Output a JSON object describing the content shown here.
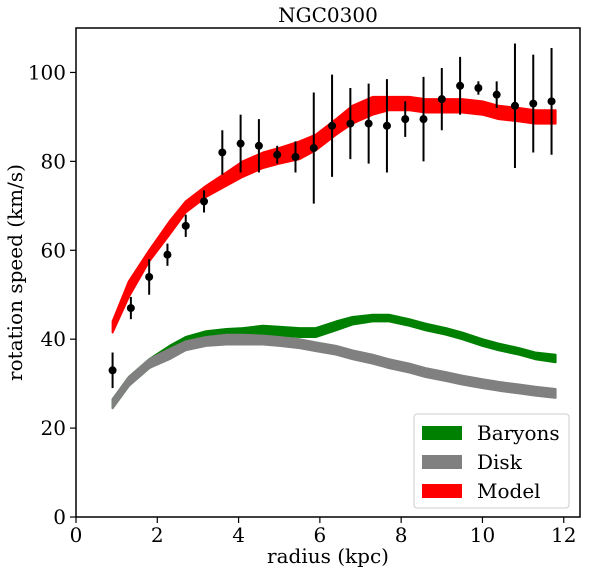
{
  "chart_data": {
    "type": "line",
    "title": "NGC0300",
    "xlabel": "radius (kpc)",
    "ylabel": "rotation speed (km/s)",
    "xlim": [
      0,
      12.4
    ],
    "ylim": [
      0,
      110
    ],
    "xticks": [
      0,
      2,
      4,
      6,
      8,
      10,
      12
    ],
    "yticks": [
      0,
      20,
      40,
      60,
      80,
      100
    ],
    "grid": false,
    "legend_position": "lower-right",
    "bands": [
      {
        "name": "Baryons",
        "color": "#008000",
        "x": [
          0.9,
          1.3,
          1.8,
          2.3,
          2.7,
          3.2,
          3.7,
          4.1,
          4.6,
          5.0,
          5.5,
          5.9,
          6.4,
          6.8,
          7.3,
          7.7,
          8.2,
          8.6,
          9.1,
          9.5,
          10.0,
          10.4,
          10.9,
          11.3,
          11.8
        ],
        "upper": [
          26.5,
          31.5,
          35.5,
          38.5,
          40.5,
          41.8,
          42.3,
          42.5,
          43.0,
          42.8,
          42.5,
          42.5,
          44.0,
          45.0,
          45.5,
          45.5,
          44.5,
          43.5,
          42.5,
          41.5,
          40.0,
          39.0,
          38.0,
          37.0,
          36.5
        ],
        "lower": [
          24.5,
          29.5,
          33.5,
          36.3,
          38.2,
          39.5,
          40.2,
          40.5,
          40.8,
          40.8,
          40.5,
          40.5,
          42.0,
          43.3,
          44.0,
          44.0,
          43.0,
          42.0,
          41.0,
          40.0,
          38.5,
          37.5,
          36.5,
          35.5,
          34.8
        ]
      },
      {
        "name": "Disk",
        "color": "#808080",
        "x": [
          0.9,
          1.3,
          1.8,
          2.3,
          2.7,
          3.2,
          3.7,
          4.1,
          4.6,
          5.0,
          5.5,
          5.9,
          6.4,
          6.8,
          7.3,
          7.7,
          8.2,
          8.6,
          9.1,
          9.5,
          10.0,
          10.4,
          10.9,
          11.3,
          11.8
        ],
        "upper": [
          26.5,
          31.5,
          35.5,
          37.8,
          39.5,
          40.5,
          41.0,
          41.0,
          40.8,
          40.5,
          40.0,
          39.3,
          38.5,
          37.5,
          36.5,
          35.5,
          34.5,
          33.5,
          32.6,
          31.8,
          31.0,
          30.4,
          29.8,
          29.3,
          28.8
        ],
        "lower": [
          24.5,
          29.5,
          33.5,
          35.5,
          37.5,
          38.5,
          38.8,
          38.8,
          38.8,
          38.5,
          38.0,
          37.3,
          36.5,
          35.5,
          34.5,
          33.5,
          32.5,
          31.5,
          30.6,
          29.8,
          29.0,
          28.4,
          27.8,
          27.3,
          26.8
        ]
      },
      {
        "name": "Model",
        "color": "#ff0000",
        "x": [
          0.9,
          1.3,
          1.8,
          2.3,
          2.7,
          3.2,
          3.7,
          4.1,
          4.6,
          5.0,
          5.5,
          5.9,
          6.4,
          6.8,
          7.3,
          7.7,
          8.2,
          8.6,
          9.1,
          9.5,
          10.0,
          10.4,
          10.9,
          11.3,
          11.8
        ],
        "upper": [
          44.0,
          53.0,
          60.0,
          66.5,
          71.0,
          74.5,
          77.5,
          80.0,
          82.0,
          83.0,
          84.5,
          86.0,
          89.5,
          92.5,
          94.5,
          94.5,
          94.5,
          94.0,
          94.0,
          94.0,
          93.5,
          92.5,
          92.0,
          91.5,
          91.5
        ],
        "lower": [
          41.5,
          49.5,
          57.5,
          63.5,
          68.5,
          72.0,
          74.5,
          76.5,
          78.5,
          79.5,
          80.5,
          82.5,
          86.0,
          88.5,
          90.5,
          91.5,
          91.5,
          91.0,
          91.0,
          91.0,
          90.5,
          89.5,
          89.0,
          88.5,
          88.5
        ]
      }
    ],
    "points": {
      "x": [
        0.9,
        1.35,
        1.8,
        2.25,
        2.7,
        3.15,
        3.6,
        4.05,
        4.5,
        4.95,
        5.4,
        5.85,
        6.3,
        6.75,
        7.2,
        7.65,
        8.1,
        8.55,
        9.0,
        9.45,
        9.9,
        10.35,
        10.8,
        11.25,
        11.7
      ],
      "y": [
        33.0,
        47.0,
        54.0,
        59.0,
        65.5,
        71.0,
        82.0,
        84.0,
        83.5,
        81.5,
        81.0,
        83.0,
        88.0,
        88.5,
        88.5,
        88.0,
        89.5,
        89.5,
        94.0,
        97.0,
        96.5,
        95.0,
        92.5,
        93.0,
        93.5
      ],
      "yerr": [
        4.0,
        2.5,
        4.0,
        2.5,
        2.5,
        2.5,
        5.0,
        6.5,
        6.0,
        2.0,
        3.5,
        12.5,
        11.5,
        8.0,
        9.0,
        10.5,
        4.0,
        9.5,
        7.0,
        6.5,
        1.5,
        3.0,
        14.0,
        11.0,
        12.0
      ]
    }
  }
}
